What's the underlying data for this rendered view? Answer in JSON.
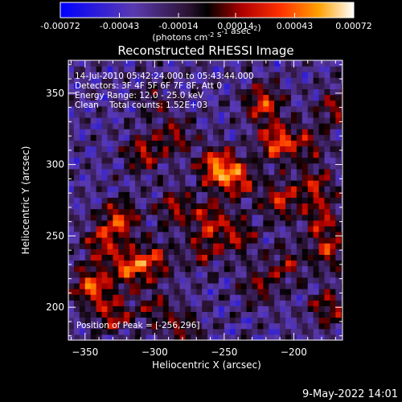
{
  "chart_data": {
    "type": "heatmap",
    "title": "Reconstructed RHESSI Image",
    "xlabel": "Heliocentric X (arcsec)",
    "ylabel": "Heliocentric Y (arcsec)",
    "xlim": [
      -362,
      -165
    ],
    "ylim": [
      177,
      373
    ],
    "x_ticks": [
      -350,
      -300,
      -250,
      -200
    ],
    "y_ticks": [
      200,
      250,
      300,
      350
    ],
    "colorbar": {
      "ticks": [
        -0.00072,
        -0.00043,
        -0.00014,
        0.00014,
        0.00043,
        0.00072
      ],
      "tick_labels": [
        "-0.00072",
        "-0.00043",
        "-0.00014",
        "0.00014",
        "0.00043",
        "0.00072"
      ],
      "range": [
        -0.00072,
        0.00072
      ],
      "units_line": "(photons cm<sup>-2</sup> s<sup>-1</sup> asec<sup>-2</sup>)"
    },
    "annotations": [
      "14-Jul-2010 05:42:24.000 to 05:43:44.000",
      "Detectors: 3F 4F 5F 6F 7F 8F, Att 0",
      "Energy Range: 12.0 - 25.0 keV",
      "Clean    Total counts: 1.52E+03"
    ],
    "peak_label": "Position of Peak = [-256,296]",
    "peak": [
      -256,
      296
    ],
    "sources": [
      {
        "x": -255,
        "y": 298,
        "amp": 1.0
      },
      {
        "x": -240,
        "y": 290,
        "amp": 0.7
      },
      {
        "x": -222,
        "y": 343,
        "amp": 0.75
      },
      {
        "x": -212,
        "y": 316,
        "amp": 0.85
      },
      {
        "x": -308,
        "y": 308,
        "amp": 0.6
      },
      {
        "x": -285,
        "y": 320,
        "amp": 0.5
      },
      {
        "x": -325,
        "y": 262,
        "amp": 0.75
      },
      {
        "x": -338,
        "y": 245,
        "amp": 0.6
      },
      {
        "x": -318,
        "y": 228,
        "amp": 0.8
      },
      {
        "x": -300,
        "y": 233,
        "amp": 0.6
      },
      {
        "x": -345,
        "y": 215,
        "amp": 0.85
      },
      {
        "x": -330,
        "y": 195,
        "amp": 0.6
      },
      {
        "x": -285,
        "y": 270,
        "amp": 0.55
      },
      {
        "x": -260,
        "y": 262,
        "amp": 0.6
      },
      {
        "x": -265,
        "y": 240,
        "amp": 0.45
      },
      {
        "x": -240,
        "y": 250,
        "amp": 0.55
      },
      {
        "x": -210,
        "y": 275,
        "amp": 0.65
      },
      {
        "x": -185,
        "y": 285,
        "amp": 0.6
      },
      {
        "x": -180,
        "y": 262,
        "amp": 0.55
      },
      {
        "x": -175,
        "y": 240,
        "amp": 0.6
      },
      {
        "x": -205,
        "y": 230,
        "amp": 0.45
      },
      {
        "x": -175,
        "y": 200,
        "amp": 0.55
      },
      {
        "x": -225,
        "y": 215,
        "amp": 0.45
      },
      {
        "x": -300,
        "y": 200,
        "amp": 0.4
      },
      {
        "x": -280,
        "y": 185,
        "amp": 0.45
      },
      {
        "x": -170,
        "y": 340,
        "amp": 0.5
      },
      {
        "x": -190,
        "y": 315,
        "amp": 0.45
      },
      {
        "x": -300,
        "y": 345,
        "amp": 0.3
      }
    ]
  },
  "footer": {
    "timestamp": "9-May-2022 14:01"
  }
}
